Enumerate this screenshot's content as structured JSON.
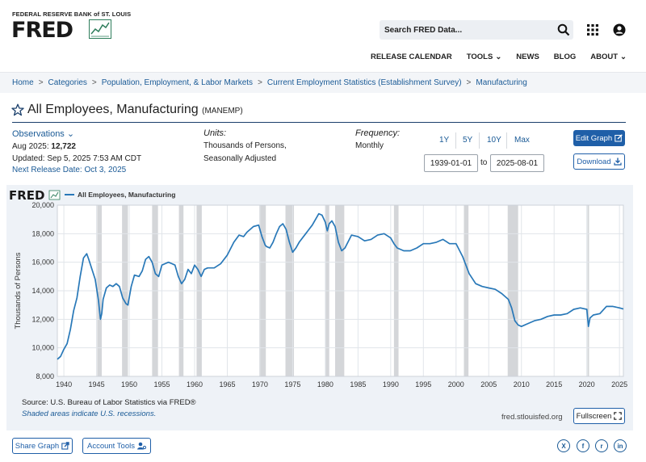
{
  "header": {
    "bank_name": "FEDERAL RESERVE BANK of ST. LOUIS",
    "logo_text": "FRED",
    "search_placeholder": "Search FRED Data...",
    "nav": [
      {
        "label": "RELEASE CALENDAR"
      },
      {
        "label": "TOOLS"
      },
      {
        "label": "NEWS"
      },
      {
        "label": "BLOG"
      },
      {
        "label": "ABOUT"
      }
    ]
  },
  "breadcrumb": [
    "Home",
    "Categories",
    "Population, Employment, & Labor Markets",
    "Current Employment Statistics (Establishment Survey)",
    "Manufacturing"
  ],
  "series": {
    "title": "All Employees, Manufacturing",
    "code": "(MANEMP)",
    "observations_label": "Observations",
    "obs_period": "Aug 2025:",
    "obs_value": "12,722",
    "updated": "Updated: Sep 5, 2025 7:53 AM CDT",
    "next_release": "Next Release Date: Oct 3, 2025",
    "units_label": "Units:",
    "units_line1": "Thousands of Persons,",
    "units_line2": "Seasonally Adjusted",
    "frequency_label": "Frequency:",
    "frequency_value": "Monthly"
  },
  "controls": {
    "ranges": [
      "1Y",
      "5Y",
      "10Y",
      "Max"
    ],
    "date_from": "1939-01-01",
    "to_label": "to",
    "date_to": "2025-08-01",
    "edit_graph": "Edit Graph",
    "download": "Download",
    "fullscreen": "Fullscreen"
  },
  "chart_footer": {
    "source": "Source: U.S. Bureau of Labor Statistics via FRED®",
    "shaded_note": "Shaded areas indicate U.S. recessions.",
    "site": "fred.stlouisfed.org"
  },
  "footer": {
    "share": "Share Graph",
    "account": "Account Tools",
    "social": [
      "X",
      "f",
      "r",
      "in"
    ]
  },
  "colors": {
    "line": "#2878b8",
    "recession": "#d4d6d9",
    "link": "#1a5a96",
    "button": "#1f5fa8"
  },
  "chart_data": {
    "type": "line",
    "title": "All Employees, Manufacturing",
    "legend": "All Employees, Manufacturing",
    "logo_text": "FRED",
    "ylabel": "Thousands of Persons",
    "xlabel": "",
    "xlim": [
      1939,
      2025.6
    ],
    "ylim": [
      8000,
      20000
    ],
    "y_ticks": [
      8000,
      10000,
      12000,
      14000,
      16000,
      18000,
      20000
    ],
    "y_tick_labels": [
      "8,000",
      "10,000",
      "12,000",
      "14,000",
      "16,000",
      "18,000",
      "20,000"
    ],
    "x_ticks": [
      1940,
      1945,
      1950,
      1955,
      1960,
      1965,
      1970,
      1975,
      1980,
      1985,
      1990,
      1995,
      2000,
      2005,
      2010,
      2015,
      2020,
      2025
    ],
    "recessions": [
      [
        1945.1,
        1945.8
      ],
      [
        1948.9,
        1949.8
      ],
      [
        1953.5,
        1954.4
      ],
      [
        1957.6,
        1958.3
      ],
      [
        1960.3,
        1961.1
      ],
      [
        1969.9,
        1970.9
      ],
      [
        1973.9,
        1975.2
      ],
      [
        1980.0,
        1980.6
      ],
      [
        1981.5,
        1982.9
      ],
      [
        1990.5,
        1991.2
      ],
      [
        2001.2,
        2001.9
      ],
      [
        2007.9,
        2009.5
      ],
      [
        2020.1,
        2020.3
      ]
    ],
    "x": [
      1939.0,
      1939.5,
      1940.0,
      1940.5,
      1941.0,
      1941.5,
      1942.0,
      1942.5,
      1943.0,
      1943.5,
      1943.8,
      1944.3,
      1944.8,
      1945.3,
      1945.6,
      1945.8,
      1946.0,
      1946.5,
      1947.0,
      1947.5,
      1948.0,
      1948.5,
      1949.0,
      1949.5,
      1949.8,
      1950.3,
      1950.8,
      1951.5,
      1952.0,
      1952.5,
      1953.0,
      1953.5,
      1954.0,
      1954.5,
      1955.0,
      1955.5,
      1956.0,
      1956.5,
      1957.0,
      1957.5,
      1958.0,
      1958.5,
      1959.0,
      1959.5,
      1960.0,
      1960.5,
      1961.0,
      1961.5,
      1962.0,
      1963.0,
      1964.0,
      1965.0,
      1966.0,
      1966.8,
      1967.5,
      1968.0,
      1969.0,
      1969.8,
      1970.3,
      1970.8,
      1971.0,
      1971.5,
      1972.0,
      1972.5,
      1973.0,
      1973.5,
      1974.0,
      1974.5,
      1975.0,
      1975.5,
      1976.0,
      1977.0,
      1978.0,
      1979.0,
      1979.5,
      1980.0,
      1980.3,
      1980.6,
      1981.0,
      1981.5,
      1982.0,
      1982.5,
      1983.0,
      1984.0,
      1985.0,
      1986.0,
      1987.0,
      1988.0,
      1989.0,
      1990.0,
      1990.5,
      1991.0,
      1992.0,
      1993.0,
      1994.0,
      1995.0,
      1996.0,
      1997.0,
      1998.0,
      1999.0,
      2000.0,
      2001.0,
      2002.0,
      2003.0,
      2004.0,
      2005.0,
      2006.0,
      2007.0,
      2008.0,
      2008.5,
      2009.0,
      2009.5,
      2010.0,
      2011.0,
      2012.0,
      2013.0,
      2014.0,
      2015.0,
      2016.0,
      2017.0,
      2018.0,
      2019.0,
      2020.0,
      2020.25,
      2020.5,
      2021.0,
      2022.0,
      2023.0,
      2024.0,
      2025.0,
      2025.6
    ],
    "values": [
      9200,
      9400,
      9900,
      10300,
      11300,
      12600,
      13500,
      15000,
      16300,
      16600,
      16200,
      15500,
      14800,
      13300,
      12000,
      12400,
      13400,
      14200,
      14400,
      14300,
      14500,
      14300,
      13500,
      13100,
      13000,
      14300,
      15100,
      15000,
      15400,
      16200,
      16400,
      16000,
      15200,
      15000,
      15800,
      15900,
      16000,
      15900,
      15800,
      15000,
      14500,
      14800,
      15500,
      15200,
      15800,
      15500,
      15000,
      15500,
      15600,
      15600,
      15900,
      16500,
      17400,
      17900,
      17800,
      18100,
      18500,
      18600,
      17800,
      17200,
      17100,
      17000,
      17400,
      18000,
      18500,
      18700,
      18300,
      17400,
      16700,
      17000,
      17400,
      18000,
      18600,
      19400,
      19300,
      18800,
      18200,
      18700,
      18900,
      18500,
      17400,
      16800,
      17000,
      17900,
      17800,
      17500,
      17600,
      17900,
      18000,
      17700,
      17300,
      17000,
      16800,
      16800,
      17000,
      17300,
      17300,
      17400,
      17600,
      17300,
      17300,
      16400,
      15200,
      14500,
      14300,
      14200,
      14100,
      13800,
      13400,
      12800,
      11900,
      11600,
      11500,
      11700,
      11900,
      12000,
      12200,
      12300,
      12300,
      12400,
      12700,
      12800,
      12700,
      11500,
      12100,
      12300,
      12400,
      12900,
      12900,
      12800,
      12722
    ]
  }
}
